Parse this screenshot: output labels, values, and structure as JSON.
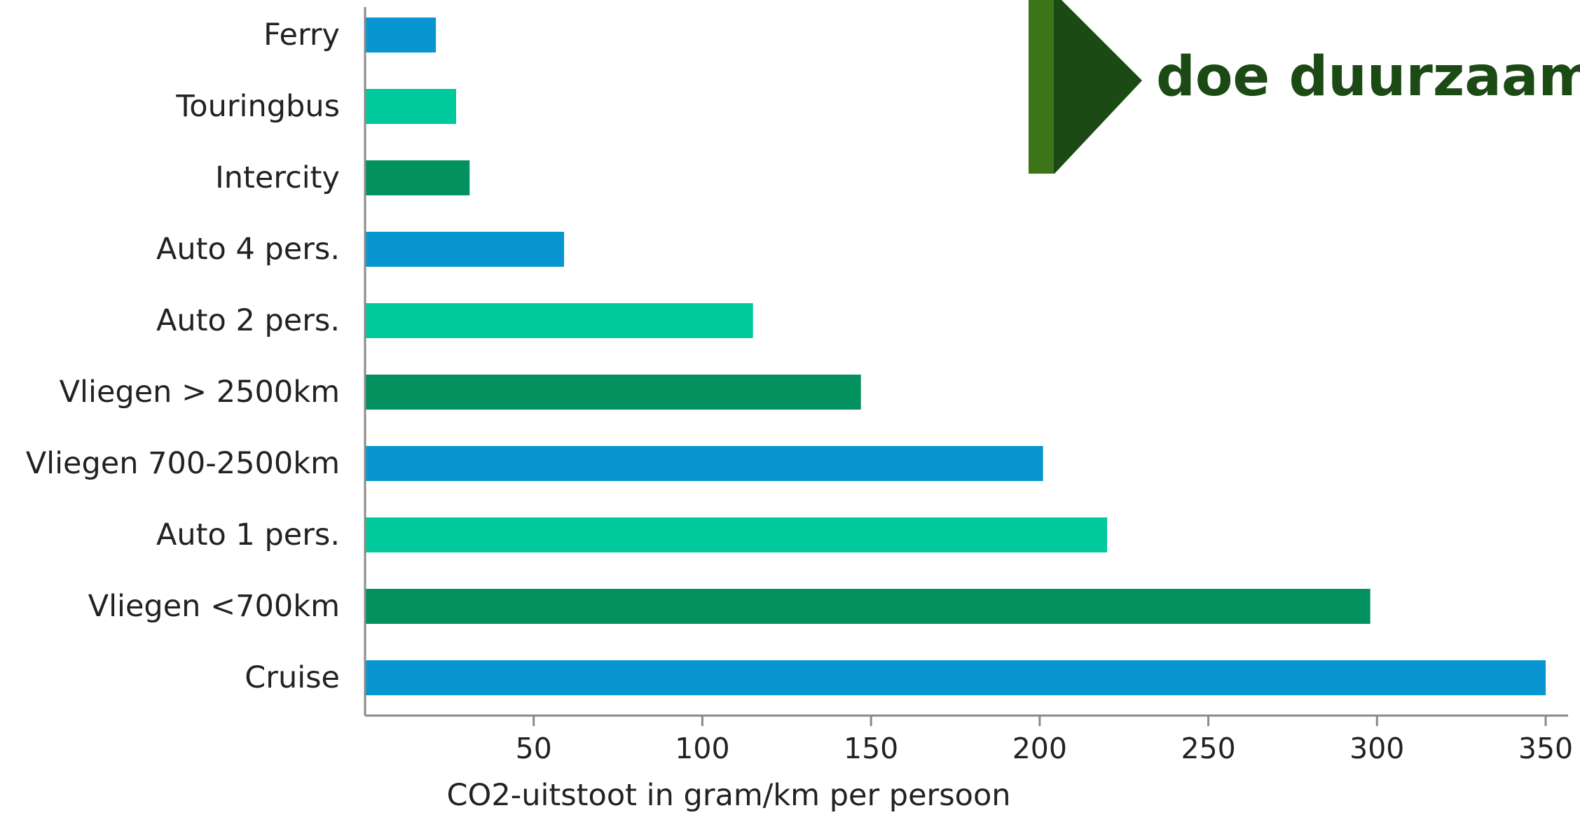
{
  "chart_data": {
    "type": "bar",
    "orientation": "horizontal",
    "categories": [
      "Ferry",
      "Touringbus",
      "Intercity",
      "Auto 4 pers.",
      "Auto 2 pers.",
      "Vliegen > 2500km",
      "Vliegen 700-2500km",
      "Auto 1 pers.",
      "Vliegen <700km",
      "Cruise"
    ],
    "values": [
      21,
      27,
      31,
      59,
      115,
      147,
      201,
      220,
      298,
      350
    ],
    "bar_colors": [
      "#0896d0",
      "#00c99b",
      "#03925f",
      "#0896d0",
      "#00c99b",
      "#03925f",
      "#0896d0",
      "#00c99b",
      "#03925f",
      "#0896d0"
    ],
    "xlabel": "CO2-uitstoot in gram/km per persoon",
    "ylabel": "",
    "title": "",
    "xlim": [
      0,
      350
    ],
    "xticks": [
      50,
      100,
      150,
      200,
      250,
      300,
      350
    ],
    "grid": false,
    "legend": "none"
  },
  "logo": {
    "text": "doe duurzaam",
    "color_dark": "#1c4a14",
    "color_light": "#3c7418"
  }
}
